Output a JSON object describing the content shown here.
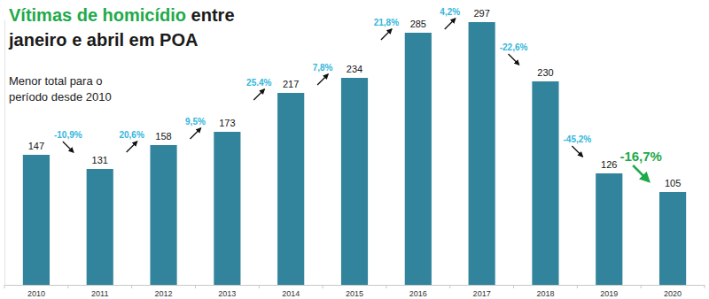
{
  "chart_data": {
    "type": "bar",
    "title": "Vítimas de homicídio entre janeiro e abril em POA",
    "subtitle": "Menor total para o período desde 2010",
    "categories": [
      "2010",
      "2011",
      "2012",
      "2013",
      "2014",
      "2015",
      "2016",
      "2017",
      "2018",
      "2019",
      "2020"
    ],
    "values": [
      147,
      131,
      158,
      173,
      217,
      234,
      285,
      297,
      230,
      126,
      105
    ],
    "color": "#31849b",
    "ylim": [
      0,
      300
    ],
    "data_labels": true,
    "tick_labels": "x",
    "annotations": [
      {
        "text": "-10,9%",
        "value": -10.9
      },
      {
        "text": "20,6%",
        "value": 20.6
      },
      {
        "text": "9,5%",
        "value": 9.5
      },
      {
        "text": "25.4%",
        "value": 25.4
      },
      {
        "text": "7,8%",
        "value": 7.8
      },
      {
        "text": "21,8%",
        "value": 21.8
      },
      {
        "text": "4,2%",
        "value": 4.2
      },
      {
        "text": "-22,6%",
        "value": -22.6
      },
      {
        "text": "-45,2%",
        "value": -45.2
      },
      {
        "text": "-16,7%",
        "value": -16.7
      }
    ]
  }
}
